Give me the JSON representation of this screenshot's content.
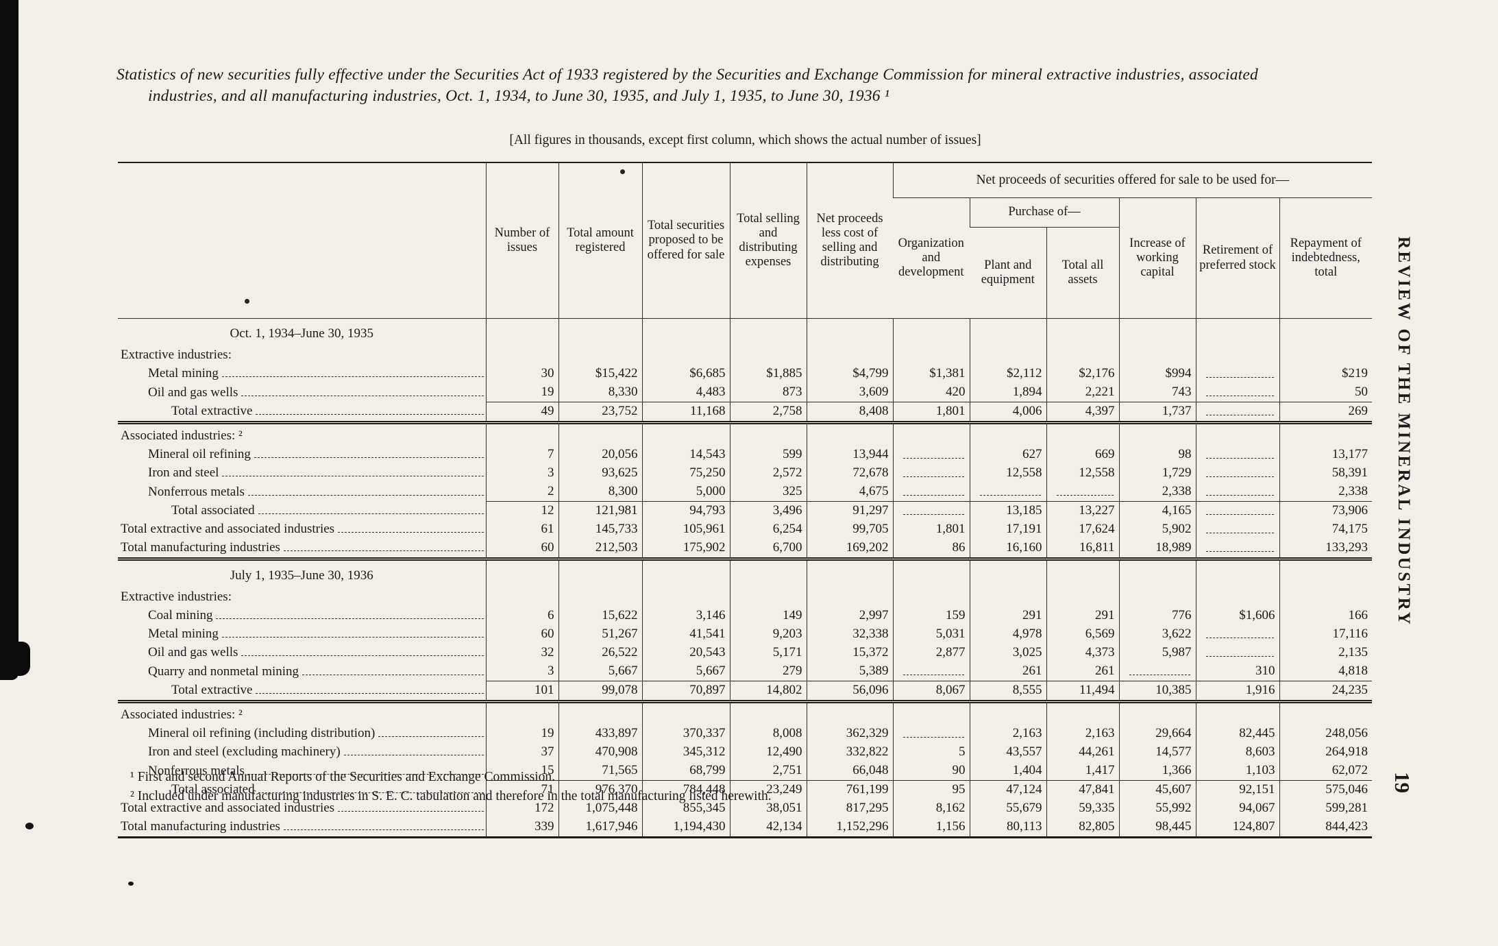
{
  "page": {
    "title": "Statistics of new securities fully effective under the Securities Act of 1933 registered by the Securities and Exchange Commission for mineral extractive industries, associated industries, and all manufacturing industries, Oct. 1, 1934, to June 30, 1935, and July 1, 1935, to June 30, 1936 ¹",
    "units_note": "[All figures in thousands, except first column, which shows the actual number of issues]",
    "side_text": "REVIEW OF THE MINERAL INDUSTRY",
    "page_number": "19"
  },
  "table": {
    "spanner": "Net proceeds of securities offered for sale to be used for—",
    "purchase_spanner": "Purchase of—",
    "columns": [
      "Number of issues",
      "Total amount registered",
      "Total securities proposed to be offered for sale",
      "Total selling and distributing expenses",
      "Net proceeds less cost of selling and distributing",
      "Organization and development",
      "Plant and equipment",
      "Total all assets",
      "Increase of working capital",
      "Retirement of preferred stock",
      "Repayment of indebtedness, total"
    ],
    "rows": [
      {
        "type": "section",
        "label": "Oct. 1, 1934–June 30, 1935"
      },
      {
        "type": "group",
        "label": "Extractive industries:"
      },
      {
        "type": "item",
        "label": "Metal mining",
        "cells": [
          "30",
          "$15,422",
          "$6,685",
          "$1,885",
          "$4,799",
          "$1,381",
          "$2,112",
          "$2,176",
          "$994",
          "",
          "$219"
        ]
      },
      {
        "type": "item",
        "label": "Oil and gas wells",
        "cells": [
          "19",
          "8,330",
          "4,483",
          "873",
          "3,609",
          "420",
          "1,894",
          "2,221",
          "743",
          "",
          "50"
        ]
      },
      {
        "type": "total",
        "label": "Total extractive",
        "ra": true,
        "rb": "double",
        "cells": [
          "49",
          "23,752",
          "11,168",
          "2,758",
          "8,408",
          "1,801",
          "4,006",
          "4,397",
          "1,737",
          "",
          "269"
        ]
      },
      {
        "type": "group",
        "label": "Associated industries: ²"
      },
      {
        "type": "item",
        "label": "Mineral oil refining",
        "cells": [
          "7",
          "20,056",
          "14,543",
          "599",
          "13,944",
          "",
          "627",
          "669",
          "98",
          "",
          "13,177"
        ]
      },
      {
        "type": "item",
        "label": "Iron and steel",
        "cells": [
          "3",
          "93,625",
          "75,250",
          "2,572",
          "72,678",
          "",
          "12,558",
          "12,558",
          "1,729",
          "",
          "58,391"
        ]
      },
      {
        "type": "item",
        "label": "Nonferrous metals",
        "cells": [
          "2",
          "8,300",
          "5,000",
          "325",
          "4,675",
          "",
          "",
          "",
          "2,338",
          "",
          "2,338"
        ]
      },
      {
        "type": "total",
        "label": "Total associated",
        "ra": true,
        "cells": [
          "12",
          "121,981",
          "94,793",
          "3,496",
          "91,297",
          "",
          "13,185",
          "13,227",
          "4,165",
          "",
          "73,906"
        ]
      },
      {
        "type": "total_flush",
        "label": "Total extractive and associated industries",
        "cells": [
          "61",
          "145,733",
          "105,961",
          "6,254",
          "99,705",
          "1,801",
          "17,191",
          "17,624",
          "5,902",
          "",
          "74,175"
        ]
      },
      {
        "type": "total_flush",
        "label": "Total manufacturing industries",
        "rb": "double",
        "cells": [
          "60",
          "212,503",
          "175,902",
          "6,700",
          "169,202",
          "86",
          "16,160",
          "16,811",
          "18,989",
          "",
          "133,293"
        ]
      },
      {
        "type": "section",
        "label": "July 1, 1935–June 30, 1936"
      },
      {
        "type": "group",
        "label": "Extractive industries:"
      },
      {
        "type": "item",
        "label": "Coal mining",
        "cells": [
          "6",
          "15,622",
          "3,146",
          "149",
          "2,997",
          "159",
          "291",
          "291",
          "776",
          "$1,606",
          "166"
        ]
      },
      {
        "type": "item",
        "label": "Metal mining",
        "cells": [
          "60",
          "51,267",
          "41,541",
          "9,203",
          "32,338",
          "5,031",
          "4,978",
          "6,569",
          "3,622",
          "",
          "17,116"
        ]
      },
      {
        "type": "item",
        "label": "Oil and gas wells",
        "cells": [
          "32",
          "26,522",
          "20,543",
          "5,171",
          "15,372",
          "2,877",
          "3,025",
          "4,373",
          "5,987",
          "",
          "2,135"
        ]
      },
      {
        "type": "item",
        "label": "Quarry and nonmetal mining",
        "cells": [
          "3",
          "5,667",
          "5,667",
          "279",
          "5,389",
          "",
          "261",
          "261",
          "",
          "310",
          "4,818"
        ]
      },
      {
        "type": "total",
        "label": "Total extractive",
        "ra": true,
        "rb": "double",
        "cells": [
          "101",
          "99,078",
          "70,897",
          "14,802",
          "56,096",
          "8,067",
          "8,555",
          "11,494",
          "10,385",
          "1,916",
          "24,235"
        ]
      },
      {
        "type": "group",
        "label": "Associated industries: ²"
      },
      {
        "type": "item",
        "label": "Mineral oil refining (including distribution)",
        "cells": [
          "19",
          "433,897",
          "370,337",
          "8,008",
          "362,329",
          "",
          "2,163",
          "2,163",
          "29,664",
          "82,445",
          "248,056"
        ]
      },
      {
        "type": "item",
        "label": "Iron and steel (excluding machinery)",
        "cells": [
          "37",
          "470,908",
          "345,312",
          "12,490",
          "332,822",
          "5",
          "43,557",
          "44,261",
          "14,577",
          "8,603",
          "264,918"
        ]
      },
      {
        "type": "item",
        "label": "Nonferrous metals",
        "cells": [
          "15",
          "71,565",
          "68,799",
          "2,751",
          "66,048",
          "90",
          "1,404",
          "1,417",
          "1,366",
          "1,103",
          "62,072"
        ]
      },
      {
        "type": "total",
        "label": "Total associated",
        "ra": true,
        "cells": [
          "71",
          "976,370",
          "784,448",
          "23,249",
          "761,199",
          "95",
          "47,124",
          "47,841",
          "45,607",
          "92,151",
          "575,046"
        ]
      },
      {
        "type": "total_flush",
        "label": "Total extractive and associated industries",
        "cells": [
          "172",
          "1,075,448",
          "855,345",
          "38,051",
          "817,295",
          "8,162",
          "55,679",
          "59,335",
          "55,992",
          "94,067",
          "599,281"
        ]
      },
      {
        "type": "total_flush",
        "label": "Total manufacturing industries",
        "rb": "heavy",
        "cells": [
          "339",
          "1,617,946",
          "1,194,430",
          "42,134",
          "1,152,296",
          "1,156",
          "80,113",
          "82,805",
          "98,445",
          "124,807",
          "844,423"
        ]
      }
    ]
  },
  "footnotes": [
    "¹ First and second Annual Reports of the Securities and Exchange Commission.",
    "² Included under manufacturing industries in S. E. C. tabulation and therefore in the total manufacturing listed herewith."
  ]
}
